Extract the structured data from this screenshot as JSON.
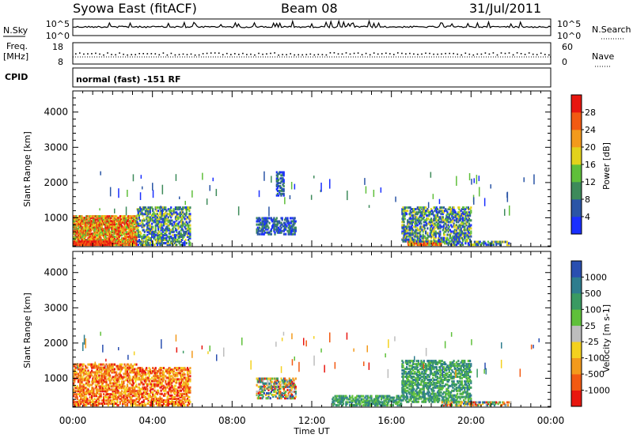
{
  "header": {
    "station": "Syowa East (fitACF)",
    "beam": "Beam 08",
    "date": "31/Jul/2011"
  },
  "left_labels": {
    "nsky": "N.Sky",
    "freq": "Freq.",
    "freq_unit": "[MHz]",
    "cpid": "CPID"
  },
  "right_labels": {
    "nsearch": "N.Search",
    "nave": "Nave"
  },
  "cpid_text": "normal (fast) -151 RF",
  "noise_ticks": [
    "10^5",
    "10^0"
  ],
  "freq_ticks": [
    "18",
    "8"
  ],
  "nave_ticks": [
    "60",
    "0"
  ],
  "x_ticks": [
    "00:00",
    "04:00",
    "08:00",
    "12:00",
    "16:00",
    "20:00",
    "00:00"
  ],
  "x_label": "Time UT",
  "y_ticks": [
    "1000",
    "2000",
    "3000",
    "4000"
  ],
  "y_label": "Slant Range [km]",
  "chart_data": [
    {
      "type": "heatmap",
      "title": "",
      "xlabel": "Time UT",
      "ylabel": "Slant Range [km]",
      "xlim": [
        0,
        24
      ],
      "ylim": [
        180,
        4600
      ],
      "colorbar": {
        "label": "Power [dB]",
        "ticks": [
          "4",
          "8",
          "12",
          "16",
          "20",
          "24",
          "28"
        ],
        "colors": [
          "#1a2fff",
          "#2a55a6",
          "#3d8a5a",
          "#5fbf3a",
          "#e2d21c",
          "#f39a1c",
          "#f25a12",
          "#e8160f"
        ]
      },
      "regions": [
        {
          "t": [
            0.0,
            3.2
          ],
          "r": [
            200,
            1050
          ],
          "level": "high"
        },
        {
          "t": [
            0.0,
            2.0
          ],
          "r": [
            200,
            330
          ],
          "level": "peak"
        },
        {
          "t": [
            3.2,
            5.9
          ],
          "r": [
            200,
            1300
          ],
          "level": "medium"
        },
        {
          "t": [
            9.2,
            11.2
          ],
          "r": [
            500,
            1000
          ],
          "level": "low"
        },
        {
          "t": [
            10.2,
            10.6
          ],
          "r": [
            1600,
            2300
          ],
          "level": "low"
        },
        {
          "t": [
            16.8,
            18.5
          ],
          "r": [
            200,
            330
          ],
          "level": "high"
        },
        {
          "t": [
            16.5,
            20.0
          ],
          "r": [
            300,
            1300
          ],
          "level": "medium"
        },
        {
          "t": [
            18.5,
            22.0
          ],
          "r": [
            200,
            320
          ],
          "level": "medium"
        }
      ]
    },
    {
      "type": "heatmap",
      "title": "",
      "xlabel": "Time UT",
      "ylabel": "Slant Range [km]",
      "xlim": [
        0,
        24
      ],
      "ylim": [
        180,
        4600
      ],
      "colorbar": {
        "label": "Velocity [m s-1]",
        "ticks": [
          "1000",
          "500",
          "100",
          "25",
          "-25",
          "-100",
          "-500",
          "-1000"
        ],
        "colors": [
          "#2a4fb0",
          "#2e7d8e",
          "#3a9a62",
          "#5fc03a",
          "#bdbdbd",
          "#f4d11f",
          "#f39a1c",
          "#f25a12",
          "#e8160f"
        ]
      },
      "regions": [
        {
          "t": [
            0.0,
            3.2
          ],
          "r": [
            200,
            1400
          ],
          "level": "negative"
        },
        {
          "t": [
            3.2,
            5.9
          ],
          "r": [
            200,
            1300
          ],
          "level": "negative"
        },
        {
          "t": [
            9.2,
            11.2
          ],
          "r": [
            400,
            1000
          ],
          "level": "mixed"
        },
        {
          "t": [
            13.0,
            16.5
          ],
          "r": [
            200,
            500
          ],
          "level": "positive"
        },
        {
          "t": [
            16.5,
            20.0
          ],
          "r": [
            300,
            1500
          ],
          "level": "positive"
        },
        {
          "t": [
            18.5,
            22.0
          ],
          "r": [
            200,
            320
          ],
          "level": "mixed"
        }
      ]
    }
  ]
}
